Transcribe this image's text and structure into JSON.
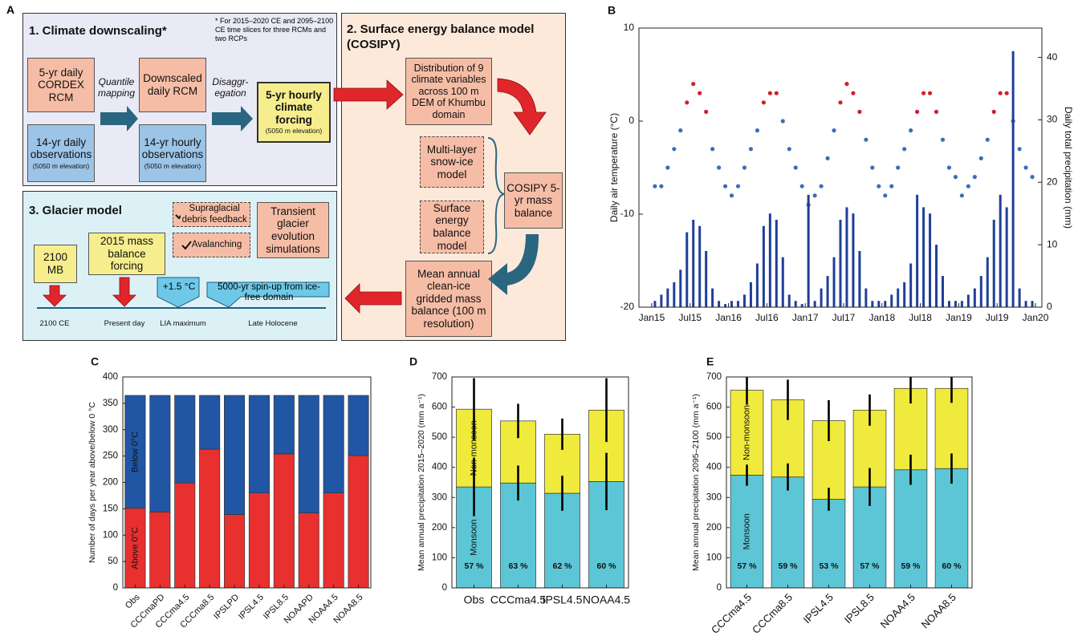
{
  "panel_label": "A",
  "diagram": {
    "section1": {
      "title": "1. Climate downscaling*",
      "note": "* For 2015–2020 CE and 2095–2100 CE time slices for three RCMs and two RCPs",
      "cordex": "5-yr daily CORDEX RCM",
      "obs_daily": "14-yr daily observations",
      "obs_daily_sub": "(5050 m elevation)",
      "mapping": "Quantile mapping",
      "downscaled": "Downscaled daily RCM",
      "obs_hourly": "14-yr hourly observations",
      "obs_hourly_sub": "(5050 m elevation)",
      "disaggregation": "Disaggr-\negation",
      "forcing": "5-yr hourly climate forcing",
      "forcing_sub": "(5050 m elevation)"
    },
    "section2": {
      "title": "2. Surface energy balance model (COSIPY)",
      "distribution": "Distribution of 9 climate variables across 100 m DEM of Khumbu domain",
      "snow_ice": "Multi-layer snow-ice model",
      "energy_balance": "Surface energy balance model",
      "cosipy": "COSIPY 5-yr mass balance",
      "mean_mb": "Mean annual clean-ice gridded mass balance (100 m resolution)"
    },
    "section3": {
      "title": "3. Glacier model",
      "debris": "Supraglacial debris feedback",
      "avalanching": "Avalanching",
      "transient": "Transient glacier evolution simulations",
      "mb2100": "2100 MB",
      "forcing2015": "2015 mass balance forcing",
      "warming": "+1.5 °C",
      "spinup": "5000-yr spin-up from ice-free domain",
      "timeline": [
        "2100 CE",
        "Present day",
        "LIA maximum",
        "Late Holocene"
      ]
    }
  },
  "chart_data": [
    {
      "type": "scatter",
      "label": "B",
      "ylabel": "Daily air temperature (°C)",
      "y2label": "Daily total precipitation (mm)",
      "xlim": [
        -2,
        61
      ],
      "xticks": [
        {
          "value": 0,
          "label": "Jan15"
        },
        {
          "value": 6,
          "label": "Jul15"
        },
        {
          "value": 12,
          "label": "Jan16"
        },
        {
          "value": 18,
          "label": "Jul16"
        },
        {
          "value": 24,
          "label": "Jan17"
        },
        {
          "value": 30,
          "label": "Jul17"
        },
        {
          "value": 36,
          "label": "Jan18"
        },
        {
          "value": 42,
          "label": "Jul18"
        },
        {
          "value": 48,
          "label": "Jan19"
        },
        {
          "value": 54,
          "label": "Jul19"
        },
        {
          "value": 60,
          "label": "Jan20"
        }
      ],
      "ylim": [
        -20,
        10
      ],
      "yticks": [
        -20,
        -10,
        0,
        10
      ],
      "y2lim": [
        0,
        44.7
      ],
      "y2ticks": [
        0,
        10,
        20,
        30,
        40
      ],
      "x": [
        0.5,
        1.5,
        2.5,
        3.5,
        4.5,
        5.5,
        6.5,
        7.5,
        8.5,
        9.5,
        10.5,
        11.5,
        12.5,
        13.5,
        14.5,
        15.5,
        16.5,
        17.5,
        18.5,
        19.5,
        20.5,
        21.5,
        22.5,
        23.5,
        24.5,
        25.5,
        26.5,
        27.5,
        28.5,
        29.5,
        30.5,
        31.5,
        32.5,
        33.5,
        34.5,
        35.5,
        36.5,
        37.5,
        38.5,
        39.5,
        40.5,
        41.5,
        42.5,
        43.5,
        44.5,
        45.5,
        46.5,
        47.5,
        48.5,
        49.5,
        50.5,
        51.5,
        52.5,
        53.5,
        54.5,
        55.5,
        56.5,
        57.5,
        58.5,
        59.5
      ],
      "series": [
        {
          "type": "scatter",
          "color": "#3a6fb8",
          "above_color": "#d0202a",
          "values": [
            -7,
            -7,
            -5,
            -3,
            -1,
            2,
            4,
            3,
            1,
            -3,
            -5,
            -7,
            -8,
            -7,
            -5,
            -3,
            -1,
            2,
            3,
            3,
            0,
            -3,
            -5,
            -7,
            -9,
            -8,
            -7,
            -4,
            -1,
            2,
            4,
            3,
            1,
            -2,
            -5,
            -7,
            -8,
            -7,
            -5,
            -3,
            -1,
            1,
            3,
            3,
            1,
            -2,
            -5,
            -6,
            -8,
            -7,
            -6,
            -4,
            -2,
            1,
            3,
            3,
            0,
            -3,
            -5,
            -6
          ]
        },
        {
          "type": "bar",
          "axis": "y2",
          "color": "#1f3f99",
          "values": [
            1,
            2,
            3,
            4,
            6,
            12,
            14,
            13,
            9,
            3,
            1,
            0.5,
            1,
            1,
            2,
            4,
            7,
            13,
            15,
            14,
            8,
            2,
            1,
            0.5,
            18,
            1,
            3,
            5,
            8,
            14,
            16,
            15,
            9,
            3,
            1,
            1,
            1,
            2,
            3,
            4,
            7,
            18,
            16,
            15,
            10,
            5,
            1,
            1,
            1,
            2,
            3,
            5,
            8,
            14,
            18,
            16,
            41,
            3,
            1,
            1
          ]
        }
      ]
    },
    {
      "type": "stacked_bar",
      "label": "C",
      "ylabel": "Number of days per year above/below 0 °C",
      "rotate_labels": true,
      "categories": [
        "Obs",
        "CCCmaPD",
        "CCCma4.5",
        "CCCma8.5",
        "IPSLPD",
        "IPSL4.5",
        "IPSL8.5",
        "NOAAPD",
        "NOAA4.5",
        "NOAA8.5"
      ],
      "ylim": [
        0,
        400
      ],
      "yticks": [
        0,
        50,
        100,
        150,
        200,
        250,
        300,
        350,
        400
      ],
      "series": [
        {
          "name": "Above 0°C",
          "color": "#e8302f",
          "values": [
            151,
            144,
            199,
            263,
            139,
            180,
            254,
            142,
            180,
            251
          ]
        },
        {
          "name": "Below 0°C",
          "color": "#2156a5",
          "values": [
            214,
            221,
            166,
            102,
            226,
            185,
            111,
            223,
            185,
            114
          ]
        }
      ]
    },
    {
      "type": "stacked_bar",
      "label": "D",
      "ylabel": "Mean annual precipitation 2015–2020 (mm a⁻¹)",
      "rotate_labels": false,
      "categories": [
        "Obs",
        "CCCma4.5",
        "IPSL4.5",
        "NOAA4.5"
      ],
      "ylim": [
        0,
        700
      ],
      "yticks": [
        0,
        100,
        200,
        300,
        400,
        500,
        600,
        700
      ],
      "series": [
        {
          "name": "Monsoon",
          "color": "#5cc6d6",
          "values": [
            335,
            348,
            314,
            353
          ],
          "errors": [
            97,
            58,
            58,
            95
          ]
        },
        {
          "name": "Non-monsoon",
          "color": "#f0ea3c",
          "values": [
            258,
            206,
            196,
            237
          ],
          "errors": [
            103,
            57,
            52,
            106
          ]
        }
      ],
      "monsoon_share": {
        "values": [
          57,
          63,
          62,
          60
        ],
        "value_labels": [
          "57 %",
          "63 %",
          "62 %",
          "60 %"
        ]
      }
    },
    {
      "type": "stacked_bar",
      "label": "E",
      "ylabel": "Mean annual precipitation 2095–2100 (mm a⁻¹)",
      "rotate_labels": true,
      "categories": [
        "CCCma4.5",
        "CCCma8.5",
        "IPSL4.5",
        "IPSL8.5",
        "NOAA4.5",
        "NOAA8.5"
      ],
      "ylim": [
        0,
        700
      ],
      "yticks": [
        0,
        100,
        200,
        300,
        400,
        500,
        600,
        700
      ],
      "series": [
        {
          "name": "Monsoon",
          "color": "#5cc6d6",
          "values": [
            374,
            368,
            294,
            335,
            392,
            396
          ],
          "errors": [
            35,
            45,
            38,
            63,
            50,
            50
          ]
        },
        {
          "name": "Non-monsoon",
          "color": "#f0ea3c",
          "values": [
            282,
            256,
            261,
            255,
            270,
            266
          ],
          "errors": [
            48,
            67,
            68,
            52,
            50,
            48
          ]
        }
      ],
      "monsoon_share": {
        "values": [
          57,
          59,
          53,
          57,
          59,
          60
        ],
        "value_labels": [
          "57 %",
          "59 %",
          "53 %",
          "57 %",
          "59 %",
          "60 %"
        ]
      }
    }
  ]
}
